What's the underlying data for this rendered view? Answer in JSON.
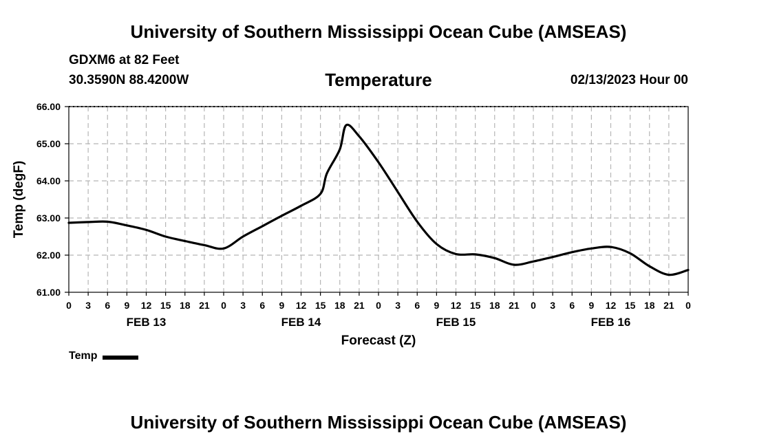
{
  "header": {
    "top_title": "University of Southern Mississippi Ocean Cube (AMSEAS)",
    "station": "GDXM6 at 82 Feet",
    "coords": "30.3590N  88.4200W",
    "variable": "Temperature",
    "datetime": "02/13/2023 Hour 00",
    "bottom_title": "University of Southern Mississippi Ocean Cube (AMSEAS)"
  },
  "legend": {
    "label": "Temp",
    "color": "#000000"
  },
  "chart_data": {
    "type": "line",
    "title": "Temperature",
    "xlabel": "Forecast (Z)",
    "ylabel": "Temp (degF)",
    "ylim": [
      61.0,
      66.0
    ],
    "yticks": [
      "61.00",
      "62.00",
      "63.00",
      "64.00",
      "65.00",
      "66.00"
    ],
    "xlim": [
      0,
      96
    ],
    "xtick_labels": [
      "0",
      "3",
      "6",
      "9",
      "12",
      "15",
      "18",
      "21",
      "0",
      "3",
      "6",
      "9",
      "12",
      "15",
      "18",
      "21",
      "0",
      "3",
      "6",
      "9",
      "12",
      "15",
      "18",
      "21",
      "0",
      "3",
      "6",
      "9",
      "12",
      "15",
      "18",
      "21",
      "0"
    ],
    "day_labels": [
      {
        "label": "FEB 13",
        "hour": 12
      },
      {
        "label": "FEB 14",
        "hour": 36
      },
      {
        "label": "FEB 15",
        "hour": 60
      },
      {
        "label": "FEB 16",
        "hour": 84
      }
    ],
    "grid": true,
    "series": [
      {
        "name": "Temp",
        "x": [
          0,
          3,
          6,
          9,
          12,
          15,
          18,
          21,
          24,
          27,
          30,
          33,
          36,
          39,
          40,
          42,
          43,
          45,
          48,
          51,
          54,
          57,
          60,
          63,
          66,
          69,
          72,
          75,
          78,
          81,
          84,
          87,
          90,
          93,
          96
        ],
        "values": [
          62.87,
          62.89,
          62.9,
          62.8,
          62.68,
          62.5,
          62.38,
          62.27,
          62.18,
          62.5,
          62.78,
          63.06,
          63.33,
          63.65,
          64.2,
          64.85,
          65.5,
          65.2,
          64.5,
          63.7,
          62.9,
          62.3,
          62.03,
          62.02,
          61.92,
          61.74,
          61.83,
          61.95,
          62.08,
          62.18,
          62.22,
          62.05,
          61.7,
          61.47,
          61.6
        ]
      }
    ]
  }
}
